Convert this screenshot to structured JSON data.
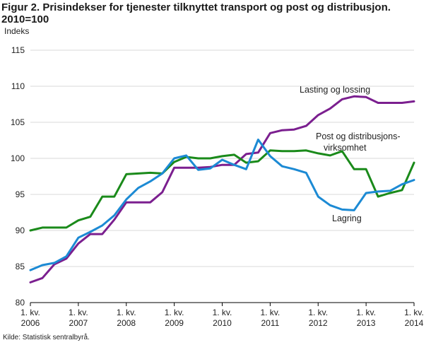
{
  "title_line1": "Figur 2. Prisindekser for tjenester tilknyttet transport og post og distribusjon.",
  "title_line2": "2010=100",
  "source": "Kilde: Statistisk sentralbyrå.",
  "colors": {
    "lasting": "#7b1f8f",
    "post": "#1a8a1a",
    "lagring": "#1c8ad4",
    "grid": "#d9d9d9"
  },
  "chart_data": {
    "type": "line",
    "ylabel": "Indeks",
    "ylim": [
      80,
      115
    ],
    "yticks": [
      80,
      85,
      90,
      95,
      100,
      105,
      110,
      115
    ],
    "grid": true,
    "x": [
      "2006K1",
      "2006K2",
      "2006K3",
      "2006K4",
      "2007K1",
      "2007K2",
      "2007K3",
      "2007K4",
      "2008K1",
      "2008K2",
      "2008K3",
      "2008K4",
      "2009K1",
      "2009K2",
      "2009K3",
      "2009K4",
      "2010K1",
      "2010K2",
      "2010K3",
      "2010K4",
      "2011K1",
      "2011K2",
      "2011K3",
      "2011K4",
      "2012K1",
      "2012K2",
      "2012K3",
      "2012K4",
      "2013K1",
      "2013K2",
      "2013K3",
      "2013K4",
      "2014K1"
    ],
    "xticks": [
      {
        "line1": "1. kv.",
        "line2": "2006",
        "index": 0
      },
      {
        "line1": "1. kv.",
        "line2": "2007",
        "index": 4
      },
      {
        "line1": "1. kv.",
        "line2": "2008",
        "index": 8
      },
      {
        "line1": "1. kv.",
        "line2": "2009",
        "index": 12
      },
      {
        "line1": "1. kv.",
        "line2": "2010",
        "index": 16
      },
      {
        "line1": "1. kv.",
        "line2": "2011",
        "index": 20
      },
      {
        "line1": "1. kv.",
        "line2": "2012",
        "index": 24
      },
      {
        "line1": "1. kv.",
        "line2": "2013",
        "index": 28
      },
      {
        "line1": "1. kv.",
        "line2": "2014",
        "index": 32
      }
    ],
    "series": [
      {
        "key": "lasting",
        "name": "Lasting og lossing",
        "values": [
          82.8,
          83.4,
          85.3,
          86.1,
          88.2,
          89.5,
          89.5,
          91.5,
          93.9,
          93.9,
          93.9,
          95.3,
          98.7,
          98.7,
          98.7,
          98.8,
          99.1,
          99.1,
          100.6,
          100.8,
          103.5,
          103.9,
          104.0,
          104.5,
          106.0,
          106.9,
          108.2,
          108.6,
          108.5,
          107.7,
          107.7,
          107.7,
          107.9
        ]
      },
      {
        "key": "post",
        "name": "Post og distribusjons-virksomhet",
        "name_lines": [
          "Post og distribusjons-",
          "virksomhet"
        ],
        "values": [
          90.0,
          90.4,
          90.4,
          90.4,
          91.4,
          91.9,
          94.7,
          94.7,
          97.8,
          97.9,
          98.0,
          97.9,
          99.5,
          100.2,
          100.0,
          100.0,
          100.3,
          100.5,
          99.4,
          99.6,
          101.1,
          101.0,
          101.0,
          101.1,
          100.7,
          100.4,
          101.0,
          98.5,
          98.5,
          94.7,
          95.2,
          95.6,
          99.4
        ]
      },
      {
        "key": "lagring",
        "name": "Lagring",
        "values": [
          84.5,
          85.2,
          85.5,
          86.4,
          89.0,
          89.8,
          90.7,
          92.1,
          94.3,
          95.9,
          96.8,
          97.9,
          100.0,
          100.4,
          98.4,
          98.6,
          99.8,
          99.1,
          98.5,
          102.6,
          100.3,
          98.9,
          98.5,
          98.0,
          94.7,
          93.5,
          92.9,
          92.8,
          95.2,
          95.4,
          95.5,
          96.4,
          97.0
        ]
      }
    ]
  }
}
